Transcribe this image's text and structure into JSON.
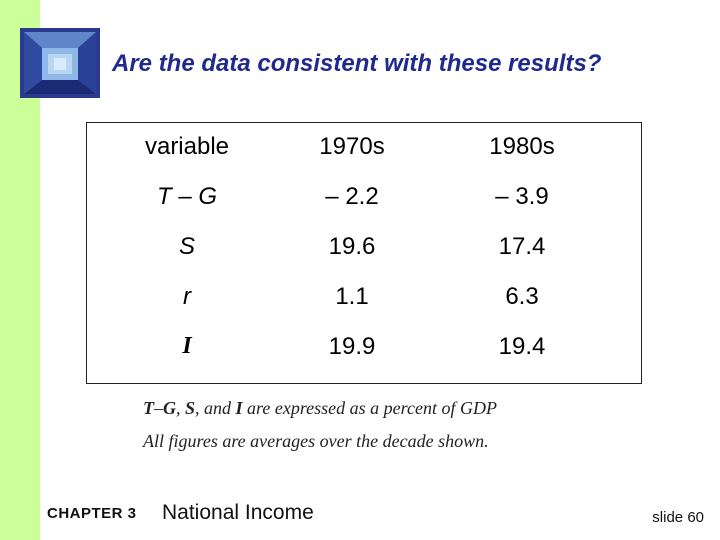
{
  "slide": {
    "title": "Are the data consistent with these results?",
    "table": {
      "headers": [
        "variable",
        "1970s",
        "1980s"
      ],
      "rows": [
        {
          "variable": "T – G",
          "v1970s": "– 2.2",
          "v1980s": "– 3.9"
        },
        {
          "variable": "S",
          "v1970s": "19.6",
          "v1980s": "17.4"
        },
        {
          "variable": "r",
          "v1970s": "1.1",
          "v1980s": "6.3"
        },
        {
          "variable": "I",
          "v1970s": "19.9",
          "v1980s": "19.4"
        }
      ]
    },
    "notes": {
      "line1_a": "T",
      "line1_b": "–",
      "line1_c": "G",
      "line1_d": ", ",
      "line1_e": "S",
      "line1_f": ", and ",
      "line1_g": "I",
      "line1_h": " are expressed as a percent of GDP",
      "line2": "All figures are averages over the decade shown."
    },
    "footer": {
      "chapter": "CHAPTER 3",
      "topic": "National Income",
      "slide_number": "slide 60"
    },
    "colors": {
      "left_bar": "#ccff99",
      "title": "#1f2a8c"
    }
  }
}
